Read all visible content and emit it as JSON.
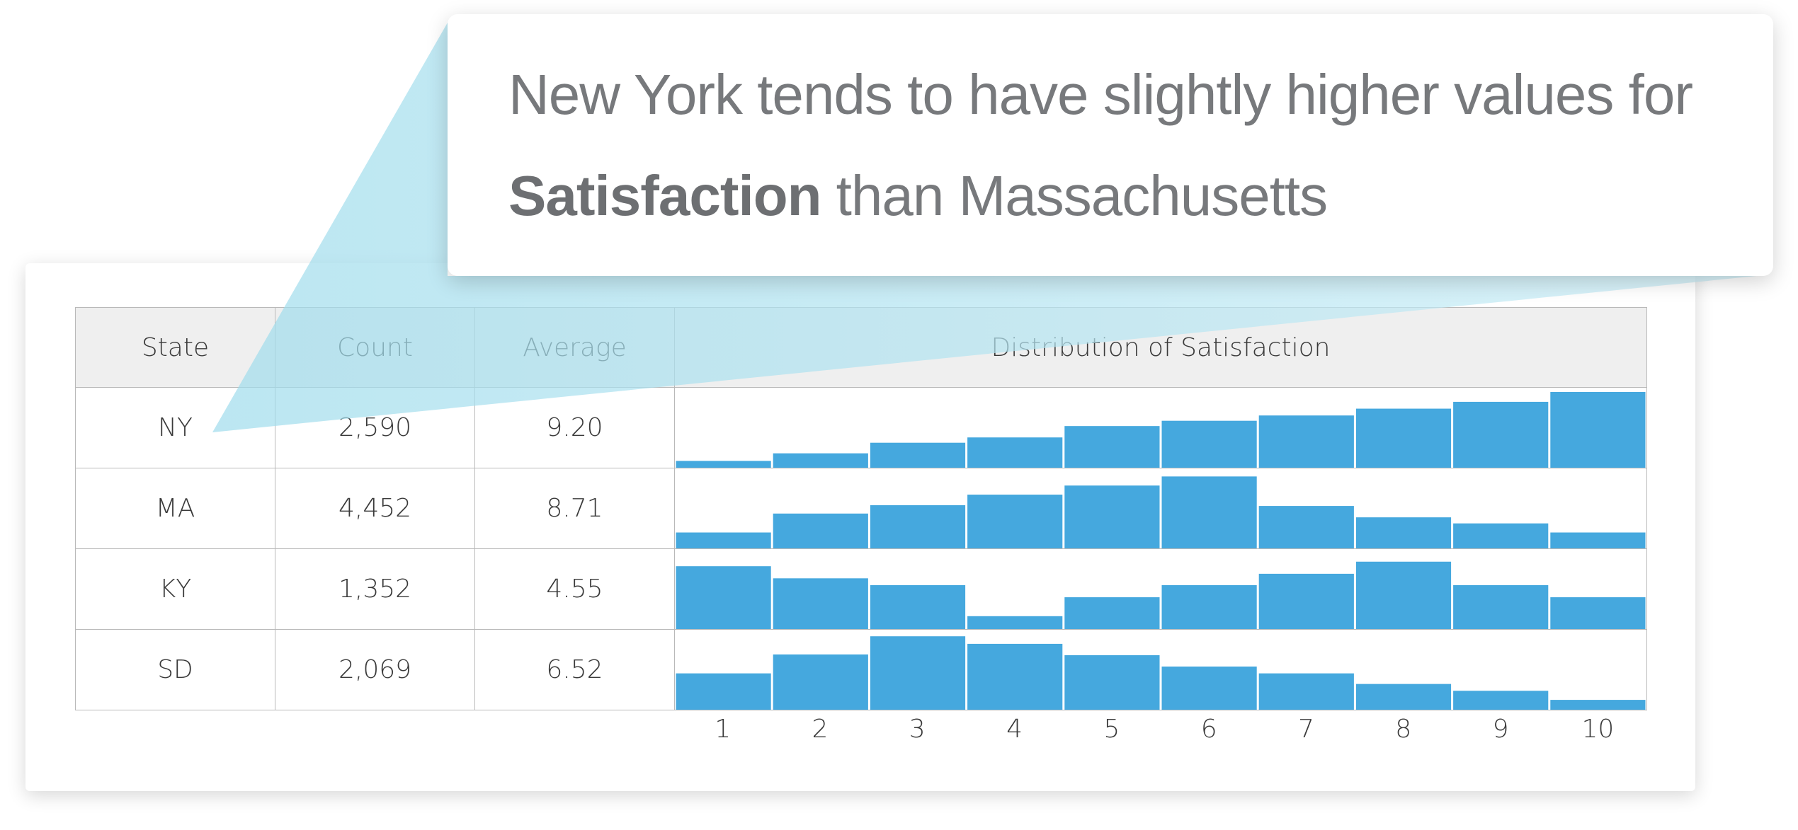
{
  "callout": {
    "prefix": "New York tends to have slightly higher values for",
    "emphasis": "Satisfaction",
    "suffix": "than Massachusetts"
  },
  "table": {
    "headers": [
      "State",
      "Count",
      "Average",
      "Distribution of Satisfaction"
    ],
    "rows": [
      {
        "state": "NY",
        "count": "2,590",
        "average": "9.20"
      },
      {
        "state": "MA",
        "count": "4,452",
        "average": "8.71"
      },
      {
        "state": "KY",
        "count": "1,352",
        "average": "4.55"
      },
      {
        "state": "SD",
        "count": "2,069",
        "average": "6.52"
      }
    ]
  },
  "colors": {
    "bar": "#45a8de",
    "pointer_light": "#c8ecf6",
    "pointer_dark": "#9fdcec"
  },
  "chart_data": {
    "type": "bar",
    "title": "Distribution of Satisfaction",
    "categories": [
      "1",
      "2",
      "3",
      "4",
      "5",
      "6",
      "7",
      "8",
      "9",
      "10"
    ],
    "series": [
      {
        "name": "NY",
        "values": [
          0.09,
          0.19,
          0.33,
          0.4,
          0.55,
          0.62,
          0.69,
          0.78,
          0.87,
          1.0
        ]
      },
      {
        "name": "MA",
        "values": [
          0.21,
          0.46,
          0.57,
          0.71,
          0.83,
          0.95,
          0.56,
          0.41,
          0.33,
          0.21
        ]
      },
      {
        "name": "KY",
        "values": [
          0.83,
          0.67,
          0.58,
          0.17,
          0.42,
          0.58,
          0.73,
          0.89,
          0.58,
          0.42
        ]
      },
      {
        "name": "SD",
        "values": [
          0.48,
          0.73,
          0.97,
          0.87,
          0.72,
          0.57,
          0.48,
          0.34,
          0.25,
          0.13
        ]
      }
    ],
    "ylim": [
      0,
      1
    ],
    "grid": false,
    "legend": "none"
  }
}
